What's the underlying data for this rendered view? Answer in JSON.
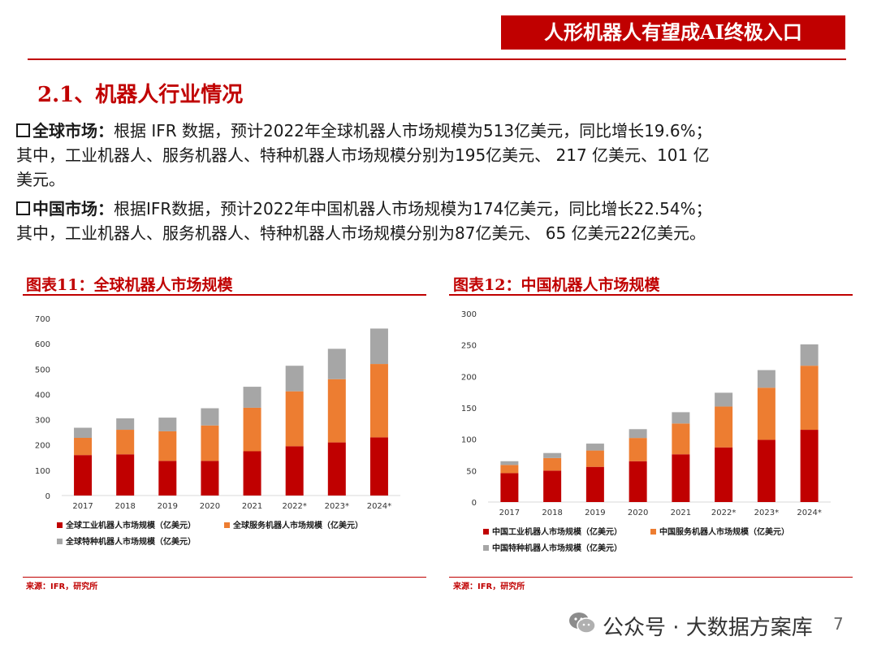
{
  "header": {
    "banner": "人形机器人有望成AI终极入口",
    "section_title": "2.1、机器人行业情况"
  },
  "paragraphs": {
    "global": {
      "label": "全球市场：",
      "line1": "根据 IFR 数据，预计2022年全球机器人市场规模为513亿美元，同比增长19.6%；",
      "line2": "其中，工业机器人、服务机器人、特种机器人市场规模分别为195亿美元、 217 亿美元、101 亿",
      "line3": "美元。"
    },
    "china": {
      "label": "中国市场：",
      "line1": "根据IFR数据，预计2022年中国机器人市场规模为174亿美元，同比增长22.54%；",
      "line2": "其中，工业机器人、服务机器人、特种机器人市场规模分别为87亿美元、 65 亿美元22亿美元。"
    }
  },
  "colors": {
    "industrial": "#c00000",
    "service": "#ed7d31",
    "special": "#a6a6a6",
    "accent": "#c00000"
  },
  "chart_data": [
    {
      "type": "bar",
      "stacked": true,
      "title": "图表11：全球机器人市场规模",
      "categories": [
        "2017",
        "2018",
        "2019",
        "2020",
        "2021",
        "2022*",
        "2023*",
        "2024*"
      ],
      "ylim": [
        0,
        700
      ],
      "yticks": [
        0,
        100,
        200,
        300,
        400,
        500,
        600,
        700
      ],
      "series": [
        {
          "name": "全球工业机器人市场规模（亿美元）",
          "values": [
            160,
            163,
            137,
            137,
            175,
            195,
            210,
            230
          ]
        },
        {
          "name": "全球服务机器人市场规模（亿美元）",
          "values": [
            68,
            97,
            117,
            140,
            172,
            217,
            250,
            290
          ]
        },
        {
          "name": "全球特种机器人市场规模（亿美元）",
          "values": [
            40,
            45,
            54,
            68,
            83,
            101,
            120,
            140
          ]
        }
      ],
      "legend_position": "bottom",
      "source": "来源：IFR，研究所"
    },
    {
      "type": "bar",
      "stacked": true,
      "title": "图表12：中国机器人市场规模",
      "categories": [
        "2017",
        "2018",
        "2019",
        "2020",
        "2021",
        "2022*",
        "2023*",
        "2024*"
      ],
      "ylim": [
        0,
        300
      ],
      "yticks": [
        0,
        50,
        100,
        150,
        200,
        250,
        300
      ],
      "series": [
        {
          "name": "中国工业机器人市场规模（亿美元）",
          "values": [
            46,
            50,
            56,
            65,
            76,
            87,
            99,
            115
          ]
        },
        {
          "name": "中国服务机器人市场规模（亿美元）",
          "values": [
            13,
            20,
            26,
            37,
            49,
            65,
            83,
            102
          ]
        },
        {
          "name": "中国特种机器人市场规模（亿美元）",
          "values": [
            6,
            8,
            11,
            14,
            18,
            22,
            28,
            34
          ]
        }
      ],
      "legend_position": "bottom",
      "source": "来源：IFR，研究所"
    }
  ],
  "footer": {
    "watermark": "公众号 · 大数据方案库",
    "page_number": "7"
  }
}
